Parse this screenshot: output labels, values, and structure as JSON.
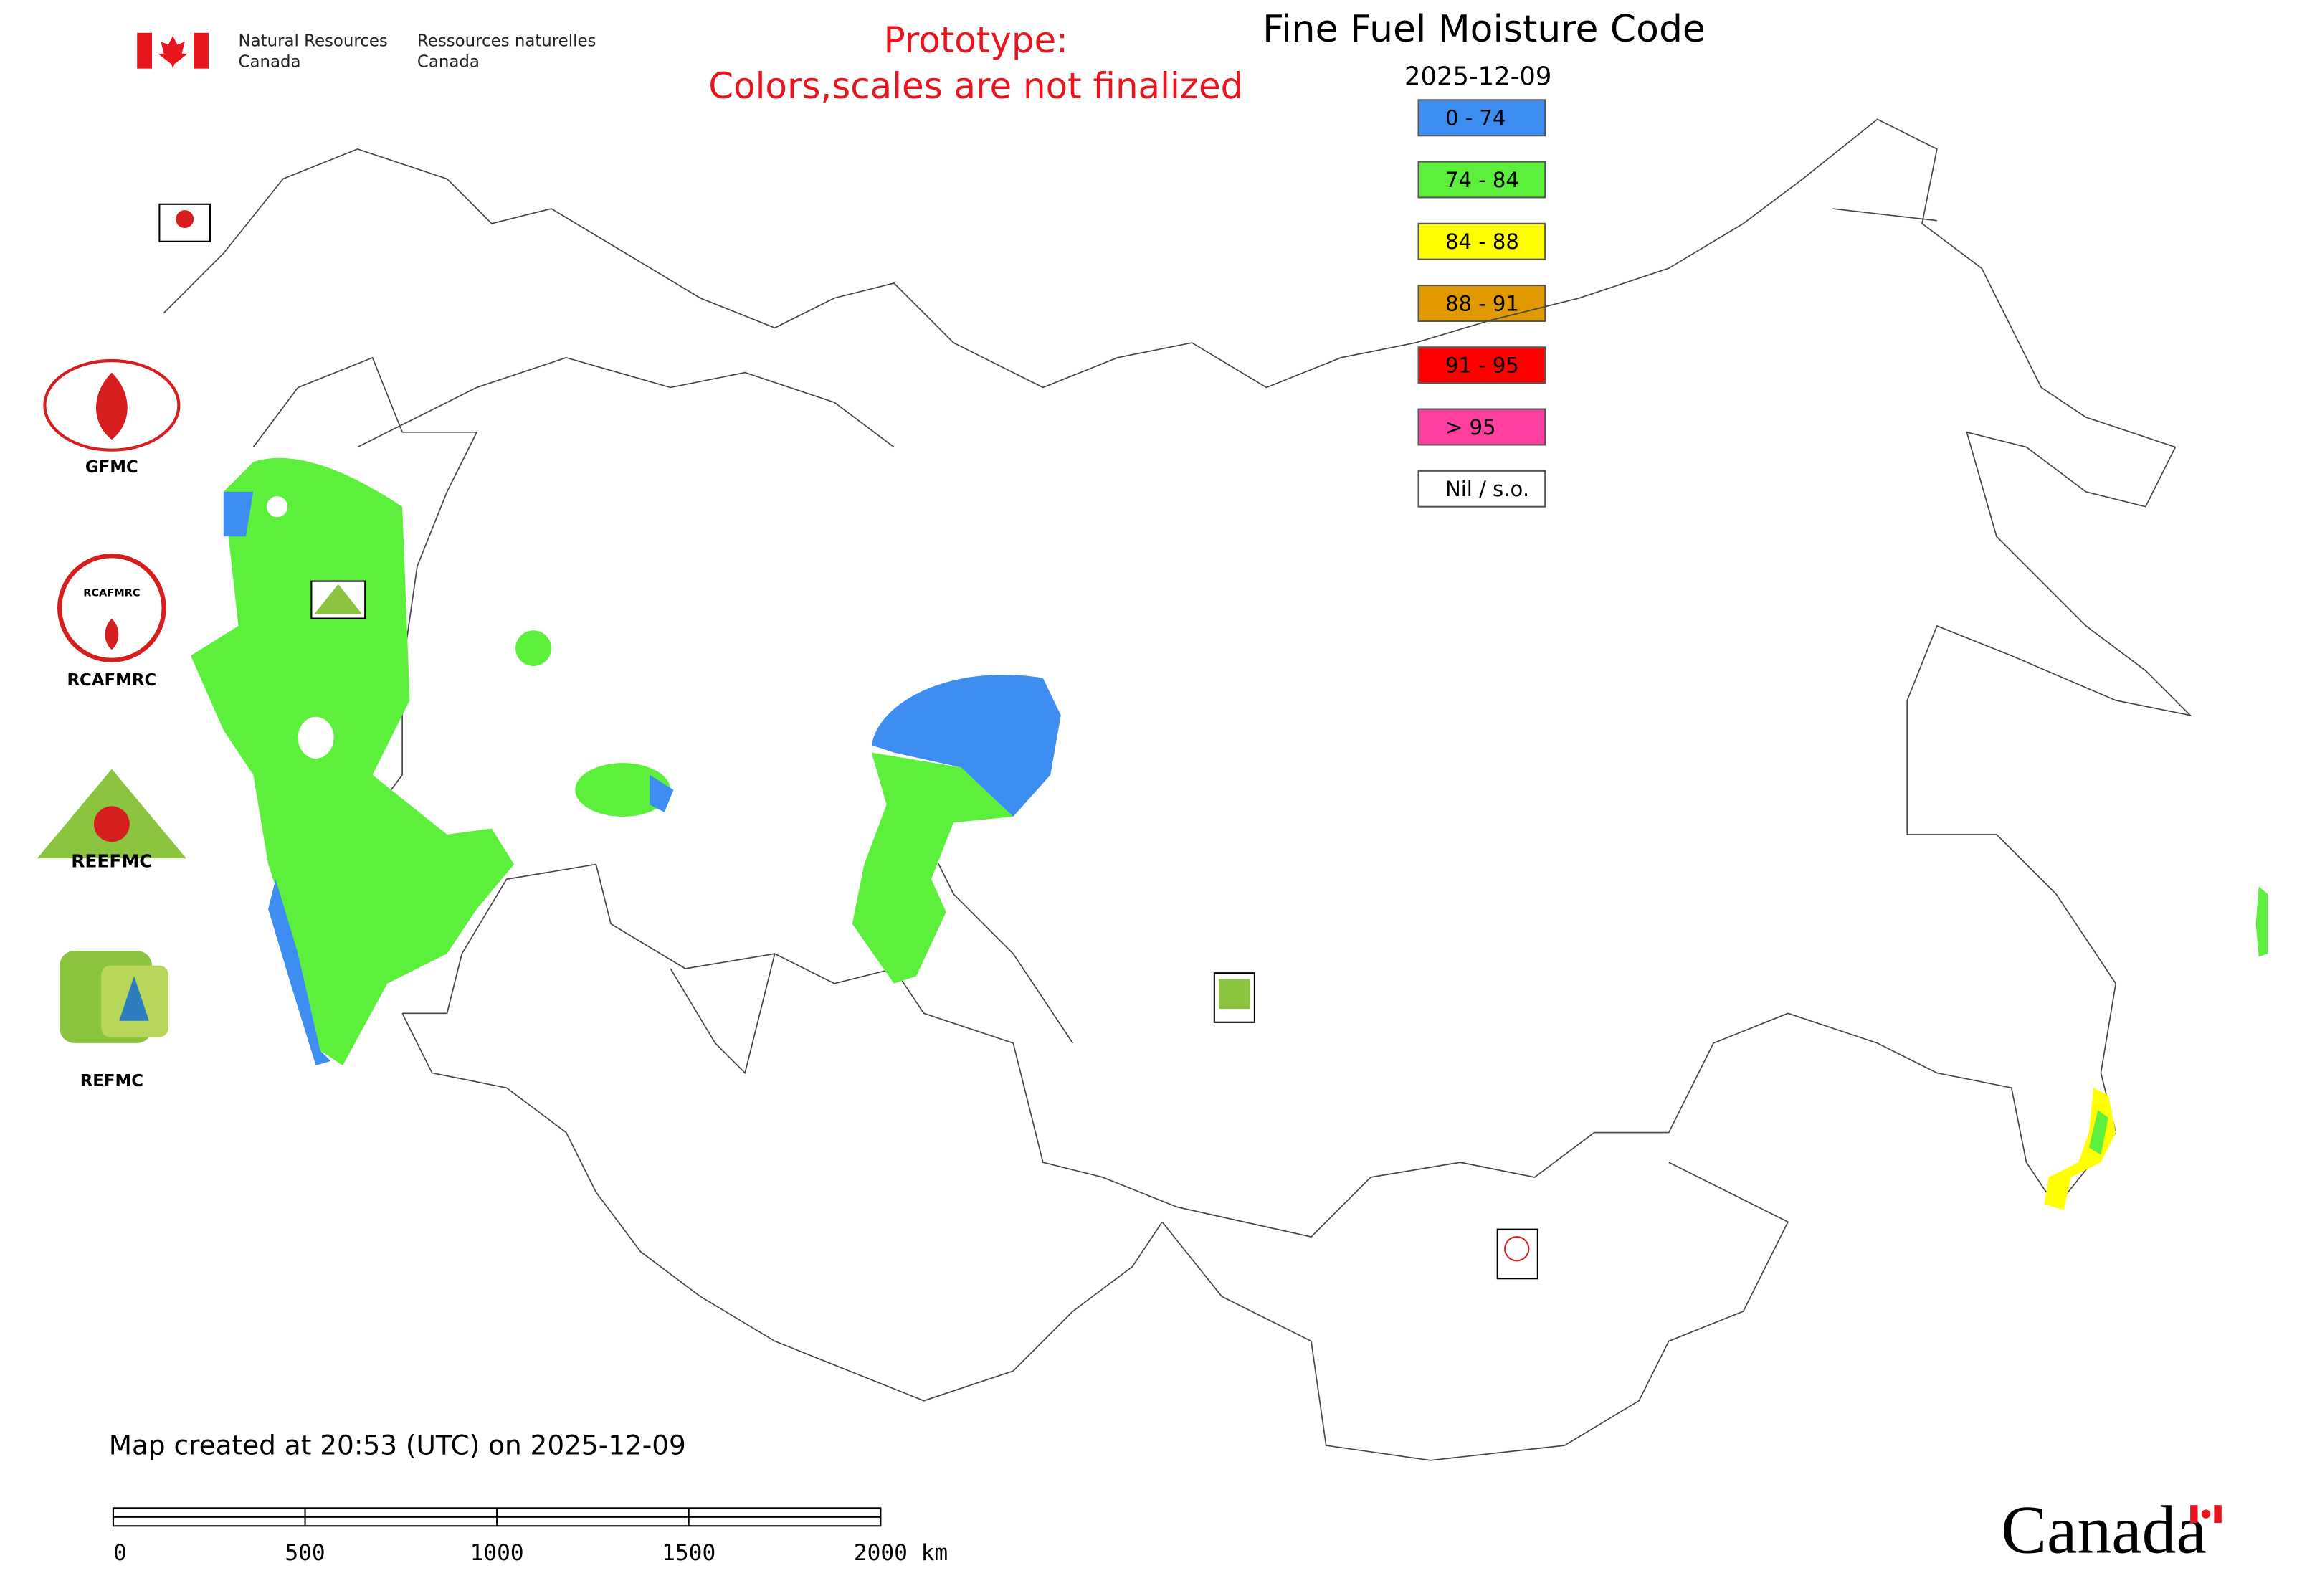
{
  "header": {
    "agency_en": [
      "Natural Resources",
      "Canada"
    ],
    "agency_fr": [
      "Ressources naturelles",
      "Canada"
    ],
    "prototype": [
      "Prototype:",
      "Colors,scales are not finalized"
    ],
    "title": "Fine Fuel Moisture Code",
    "date": "2025-12-09"
  },
  "legend": [
    {
      "label": "0 - 74",
      "color": "#3d8ef0"
    },
    {
      "label": "74 - 84",
      "color": "#5cf03c"
    },
    {
      "label": "84 - 88",
      "color": "#ffff00"
    },
    {
      "label": "88 - 91",
      "color": "#e09a00"
    },
    {
      "label": "91 - 95",
      "color": "#ff0000"
    },
    {
      "label": "> 95",
      "color": "#ff3fa0"
    },
    {
      "label": "Nil / s.o.",
      "color": "#ffffff"
    }
  ],
  "logos": [
    "GFMC",
    "RCAFMRC",
    "REEFMC",
    "REFMC"
  ],
  "footer": {
    "created": "Map created at 20:53 (UTC) on 2025-12-09",
    "scale": [
      "0",
      "500",
      "1000",
      "1500",
      "2000 km"
    ],
    "wordmark": "Canada"
  }
}
